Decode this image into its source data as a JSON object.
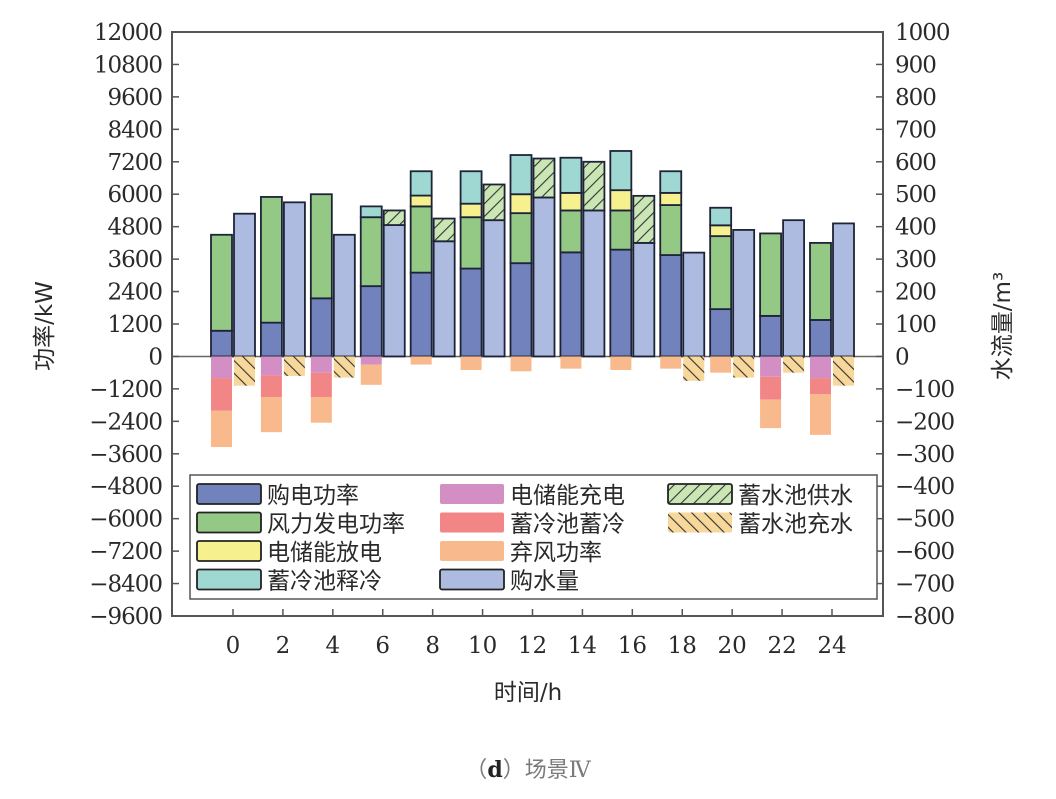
{
  "caption": {
    "prefix": "（",
    "letter": "d",
    "suffix": "）场景Ⅳ"
  },
  "chart_data": {
    "type": "bar",
    "stacked": true,
    "title": "",
    "xlabel": "时间/h",
    "ylabel": "功率/kW",
    "y2label": "水流量/m³",
    "ylim": [
      -9600,
      12000
    ],
    "y2lim": [
      -800,
      1000
    ],
    "yticks": [
      12000,
      10800,
      9600,
      8400,
      7200,
      6000,
      4800,
      3600,
      2400,
      1200,
      0,
      -1200,
      -2400,
      -3600,
      -4800,
      -6000,
      -7200,
      -8400,
      -9600
    ],
    "y2ticks": [
      1000,
      900,
      800,
      700,
      600,
      500,
      400,
      300,
      200,
      100,
      0,
      -100,
      -200,
      -300,
      -400,
      -500,
      -600,
      -700,
      -800
    ],
    "categories": [
      "0",
      "2",
      "4",
      "6",
      "8",
      "10",
      "12",
      "14",
      "16",
      "18",
      "20",
      "22",
      "24"
    ],
    "grid": false,
    "legend_position": "lower inside plot",
    "power_series": [
      {
        "name": "购电功率",
        "color": "#7282bd",
        "values": [
          950,
          1250,
          2150,
          2600,
          3100,
          3250,
          3450,
          3850,
          3950,
          3750,
          1750,
          1500,
          1350
        ]
      },
      {
        "name": "风力发电功率",
        "color": "#93c985",
        "values": [
          3550,
          4650,
          3850,
          2550,
          2450,
          1900,
          1850,
          1550,
          1450,
          1850,
          2700,
          3050,
          2850
        ]
      },
      {
        "name": "电储能放电",
        "color": "#f7f08e",
        "values": [
          0,
          0,
          0,
          0,
          400,
          500,
          700,
          650,
          750,
          450,
          400,
          0,
          0
        ]
      },
      {
        "name": "蓄冷池释冷",
        "color": "#9fd8d2",
        "values": [
          0,
          0,
          0,
          400,
          900,
          1200,
          1450,
          1300,
          1450,
          800,
          650,
          0,
          0
        ]
      },
      {
        "name": "电储能充电",
        "color": "#d38fc4",
        "values": [
          -800,
          -700,
          -600,
          -300,
          0,
          0,
          0,
          0,
          0,
          0,
          0,
          -750,
          -800
        ]
      },
      {
        "name": "蓄冷池蓄冷",
        "color": "#f28686",
        "values": [
          -1200,
          -800,
          -900,
          0,
          0,
          0,
          0,
          0,
          0,
          0,
          0,
          -850,
          -600
        ]
      },
      {
        "name": "弃风功率",
        "color": "#f8b98c",
        "values": [
          -1350,
          -1300,
          -950,
          -750,
          -300,
          -500,
          -550,
          -450,
          -500,
          -450,
          -600,
          -1050,
          -1500
        ]
      }
    ],
    "water_series": [
      {
        "name": "购水量",
        "color": "#aebbe0",
        "values": [
          440,
          475,
          375,
          405,
          355,
          420,
          490,
          450,
          350,
          320,
          390,
          420,
          410
        ]
      },
      {
        "name": "蓄水池供水",
        "color": "#c9e6b4",
        "hatch": "forward",
        "values": [
          0,
          0,
          0,
          45,
          70,
          110,
          120,
          150,
          145,
          0,
          0,
          0,
          0
        ]
      },
      {
        "name": "蓄水池充水",
        "color": "#f7d79a",
        "hatch": "backward",
        "values": [
          -90,
          -60,
          -65,
          0,
          0,
          0,
          0,
          0,
          0,
          -75,
          -65,
          -50,
          -90
        ]
      }
    ],
    "legend": [
      {
        "label": "购电功率",
        "swatch": "purchase-power"
      },
      {
        "label": "风力发电功率",
        "swatch": "wind-power"
      },
      {
        "label": "电储能放电",
        "swatch": "battery-discharge"
      },
      {
        "label": "蓄冷池释冷",
        "swatch": "cold-release"
      },
      {
        "label": "电储能充电",
        "swatch": "battery-charge"
      },
      {
        "label": "蓄冷池蓄冷",
        "swatch": "cold-storage"
      },
      {
        "label": "弃风功率",
        "swatch": "wind-curtail"
      },
      {
        "label": "购水量",
        "swatch": "water-purchase"
      },
      {
        "label": "蓄水池供水",
        "swatch": "tank-supply"
      },
      {
        "label": "蓄水池充水",
        "swatch": "tank-charge"
      }
    ]
  }
}
